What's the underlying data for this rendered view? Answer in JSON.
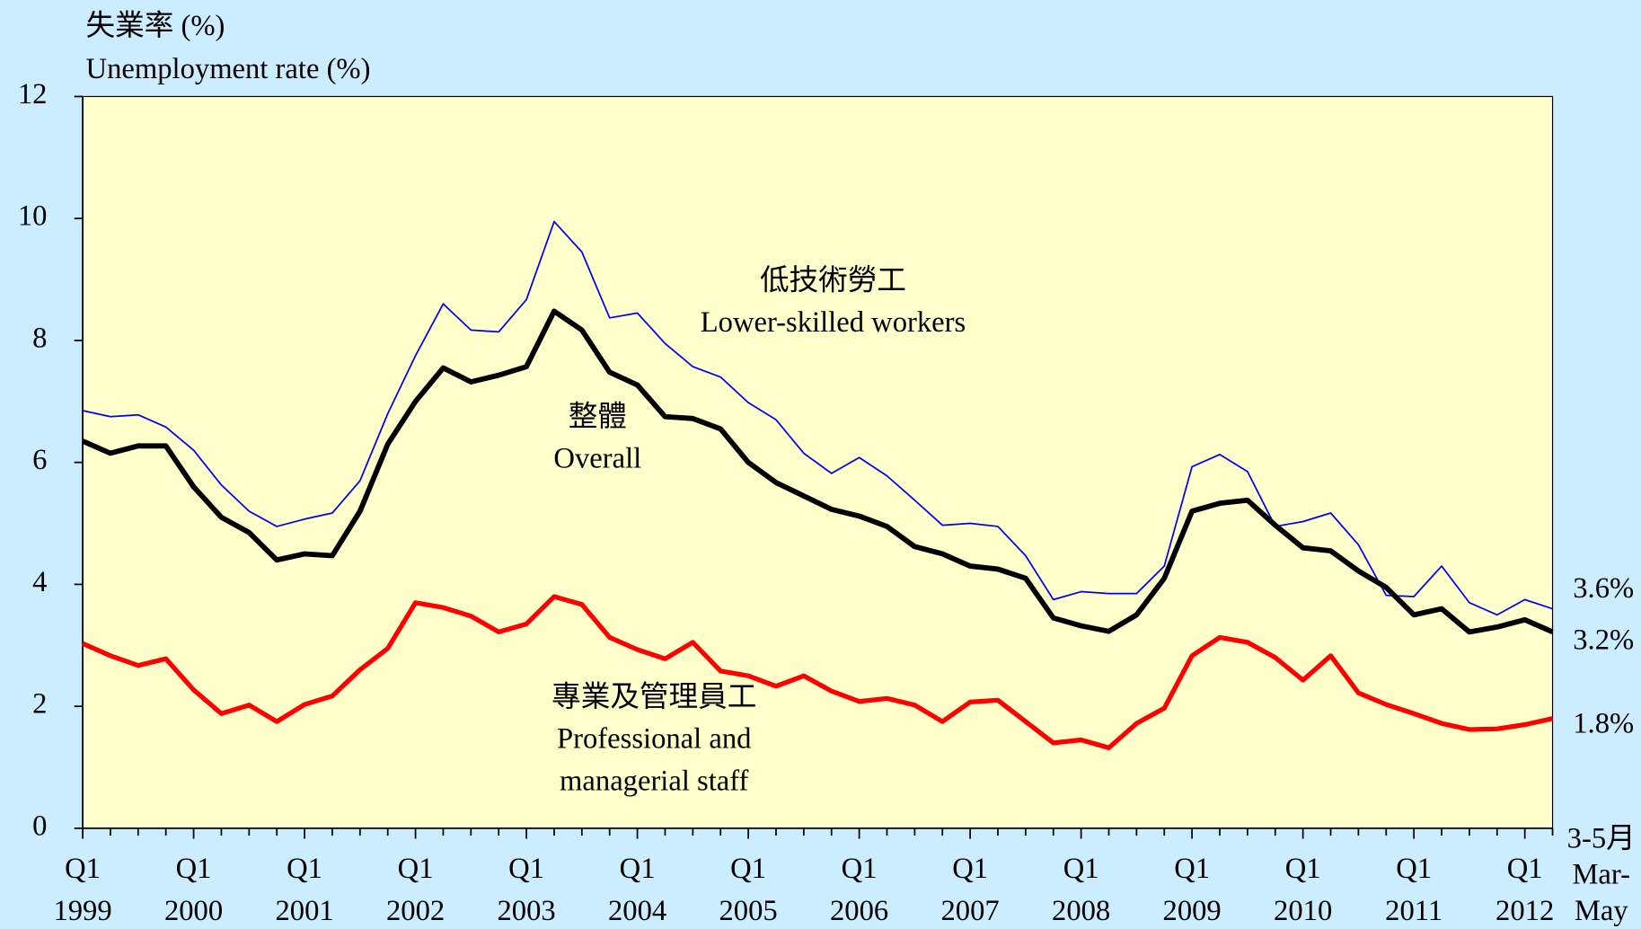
{
  "chart_data": {
    "type": "line",
    "y_axis_title": [
      "失業率 (%)",
      "Unemployment rate (%)"
    ],
    "categories": [
      {
        "quarter": "Q1",
        "year": "1999"
      },
      null,
      null,
      null,
      {
        "quarter": "Q1",
        "year": "2000"
      },
      null,
      null,
      null,
      {
        "quarter": "Q1",
        "year": "2001"
      },
      null,
      null,
      null,
      {
        "quarter": "Q1",
        "year": "2002"
      },
      null,
      null,
      null,
      {
        "quarter": "Q1",
        "year": "2003"
      },
      null,
      null,
      null,
      {
        "quarter": "Q1",
        "year": "2004"
      },
      null,
      null,
      null,
      {
        "quarter": "Q1",
        "year": "2005"
      },
      null,
      null,
      null,
      {
        "quarter": "Q1",
        "year": "2006"
      },
      null,
      null,
      null,
      {
        "quarter": "Q1",
        "year": "2007"
      },
      null,
      null,
      null,
      {
        "quarter": "Q1",
        "year": "2008"
      },
      null,
      null,
      null,
      {
        "quarter": "Q1",
        "year": "2009"
      },
      null,
      null,
      null,
      {
        "quarter": "Q1",
        "year": "2010"
      },
      null,
      null,
      null,
      {
        "quarter": "Q1",
        "year": "2011"
      },
      null,
      null,
      null,
      {
        "quarter": "Q1",
        "year": "2012"
      },
      {
        "lines": [
          "3-5月",
          "Mar-",
          "May"
        ]
      }
    ],
    "ylim": [
      0,
      12
    ],
    "yticks": [
      0,
      2,
      4,
      6,
      8,
      10,
      12
    ],
    "series": [
      {
        "label_zh": "低技術勞工",
        "label_en": [
          "Lower-skilled workers"
        ],
        "color": "#0000ff",
        "end_label": "3.6%",
        "values": [
          6.85,
          6.75,
          6.78,
          6.58,
          6.2,
          5.63,
          5.2,
          4.95,
          5.07,
          5.17,
          5.7,
          6.8,
          7.75,
          8.6,
          8.17,
          8.14,
          8.67,
          9.95,
          9.45,
          8.37,
          8.45,
          7.95,
          7.57,
          7.4,
          6.98,
          6.7,
          6.15,
          5.82,
          6.08,
          5.78,
          5.38,
          4.97,
          5.0,
          4.95,
          4.47,
          3.75,
          3.88,
          3.85,
          3.85,
          4.3,
          5.93,
          6.13,
          5.85,
          4.95,
          5.03,
          5.17,
          4.65,
          3.82,
          3.8,
          4.3,
          3.7,
          3.5,
          3.75,
          3.6
        ]
      },
      {
        "label_zh": "整體",
        "label_en": [
          "Overall"
        ],
        "color": "#000000",
        "end_label": "3.2%",
        "values": [
          6.35,
          6.15,
          6.27,
          6.27,
          5.6,
          5.1,
          4.85,
          4.4,
          4.5,
          4.47,
          5.2,
          6.3,
          7.0,
          7.55,
          7.32,
          7.43,
          7.57,
          8.48,
          8.17,
          7.48,
          7.27,
          6.75,
          6.72,
          6.55,
          6.0,
          5.67,
          5.45,
          5.23,
          5.12,
          4.95,
          4.62,
          4.5,
          4.3,
          4.25,
          4.1,
          3.45,
          3.32,
          3.23,
          3.5,
          4.1,
          5.2,
          5.33,
          5.38,
          4.97,
          4.6,
          4.55,
          4.22,
          3.95,
          3.5,
          3.6,
          3.22,
          3.3,
          3.42,
          3.22
        ]
      },
      {
        "label_zh": "專業及管理員工",
        "label_en": [
          "Professional and",
          "managerial staff"
        ],
        "color": "#ff0000",
        "end_label": "1.8%",
        "values": [
          3.03,
          2.83,
          2.67,
          2.78,
          2.27,
          1.88,
          2.02,
          1.75,
          2.03,
          2.17,
          2.6,
          2.95,
          3.7,
          3.62,
          3.48,
          3.22,
          3.35,
          3.8,
          3.67,
          3.13,
          2.93,
          2.78,
          3.05,
          2.58,
          2.5,
          2.33,
          2.5,
          2.25,
          2.08,
          2.13,
          2.02,
          1.75,
          2.07,
          2.1,
          1.75,
          1.4,
          1.45,
          1.32,
          1.72,
          1.97,
          2.83,
          3.13,
          3.05,
          2.8,
          2.43,
          2.83,
          2.22,
          2.03,
          1.88,
          1.72,
          1.62,
          1.63,
          1.7,
          1.8
        ]
      }
    ]
  }
}
